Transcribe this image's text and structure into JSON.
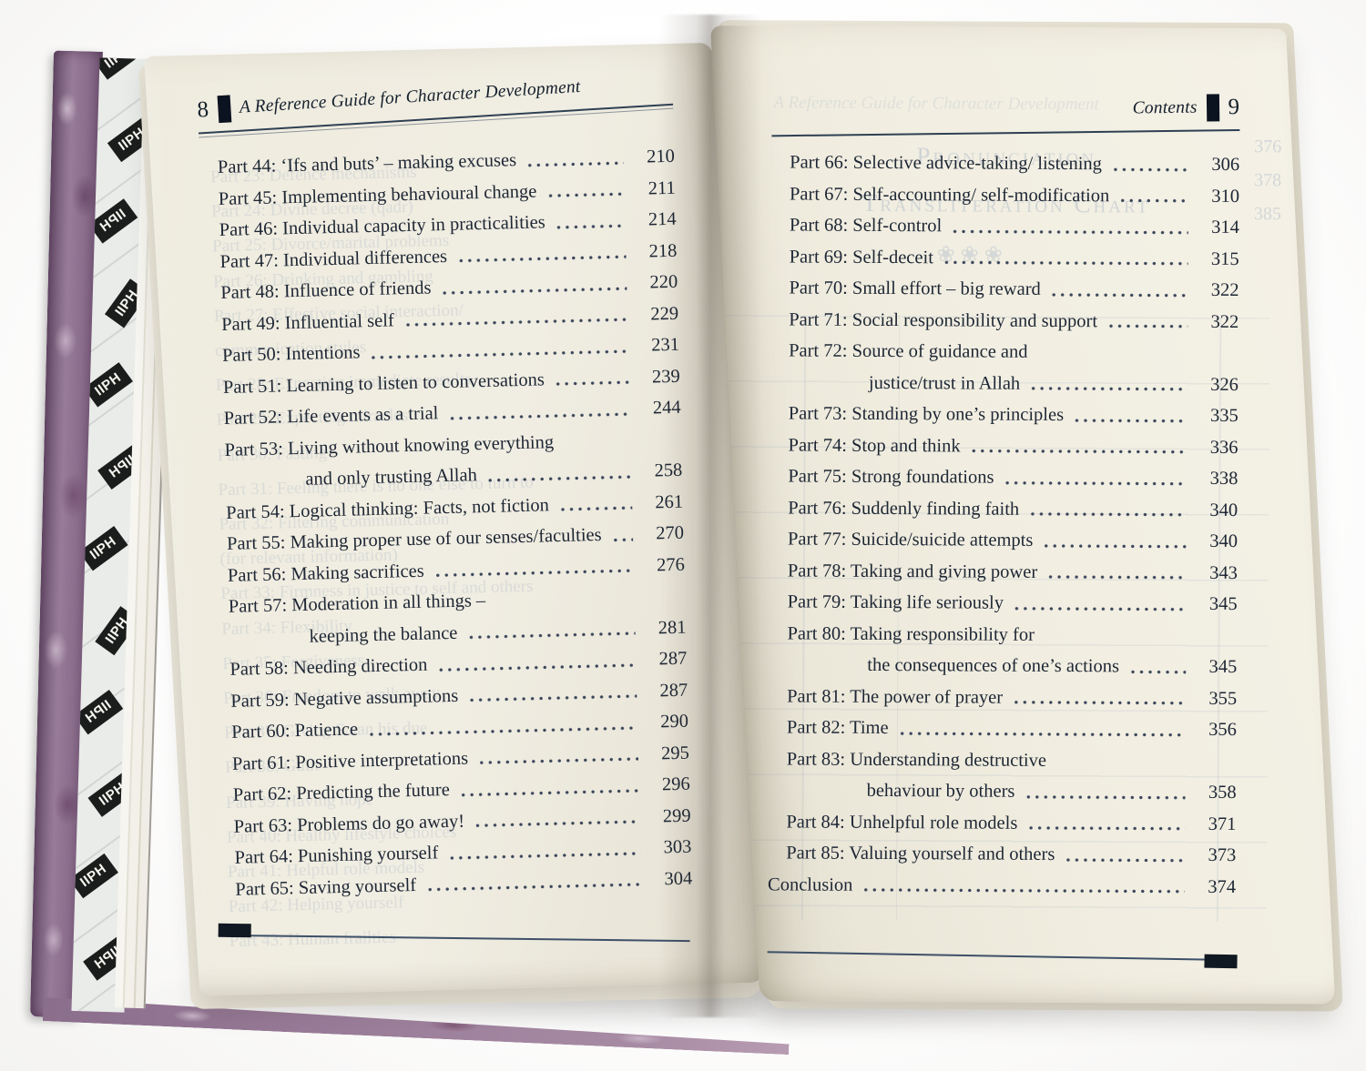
{
  "book": {
    "endpaper": {
      "pattern_text": "IIPH",
      "cover_color": "#8a6d8b"
    },
    "colors": {
      "ink": "#1d2634",
      "rule": "#2e4053",
      "paper": "#eeebe0",
      "ghost": "#41659c"
    },
    "left_page": {
      "page_number": "8",
      "running_head": "A Reference Guide for Character Development",
      "entries": [
        {
          "text": "Part 44: ‘Ifs and buts’ – making excuses",
          "page": "210"
        },
        {
          "text": "Part 45: Implementing behavioural change",
          "page": "211"
        },
        {
          "text": "Part 46: Individual capacity in practicalities",
          "page": "214"
        },
        {
          "text": "Part 47: Individual differences",
          "page": "218"
        },
        {
          "text": "Part 48: Influence of friends",
          "page": "220"
        },
        {
          "text": "Part 49: Influential self",
          "page": "229"
        },
        {
          "text": "Part 50: Intentions",
          "page": "231"
        },
        {
          "text": "Part 51: Learning to listen to conversations",
          "page": "239"
        },
        {
          "text": "Part 52: Life events as a trial",
          "page": "244"
        },
        {
          "text": "Part 53: Living without knowing everything",
          "cont": "and only trusting Allah",
          "page": "258"
        },
        {
          "text": "Part 54: Logical thinking: Facts, not fiction",
          "page": "261"
        },
        {
          "text": "Part 55: Making proper use of our senses/faculties",
          "page": "270"
        },
        {
          "text": "Part 56: Making sacrifices",
          "page": "276"
        },
        {
          "text": "Part 57: Moderation in all things –",
          "cont": "keeping the balance",
          "page": "281"
        },
        {
          "text": "Part 58: Needing direction",
          "page": "287"
        },
        {
          "text": "Part 59: Negative assumptions",
          "page": "287"
        },
        {
          "text": "Part 60: Patience",
          "page": "290"
        },
        {
          "text": "Part 61: Positive interpretations",
          "page": "295"
        },
        {
          "text": "Part 62: Predicting the future",
          "page": "296"
        },
        {
          "text": "Part 63: Problems do go away!",
          "page": "299"
        },
        {
          "text": "Part 64: Punishing yourself",
          "page": "303"
        },
        {
          "text": "Part 65: Saving yourself",
          "page": "304"
        }
      ],
      "ghost_lines": [
        "Part 23: Defence mechanisms",
        "Part 24: Divine decree (qadr)",
        "Part 25: Divorce/marital problems",
        "Part 26: Drinking and gambling",
        "Part 27: Effective social interaction/",
        "communication styles",
        "Part 28: Expecting immediate results",
        "Part 29: Expecting miracles",
        "Part 30: Fasting",
        "Part 31: Feeling there is no one else to turn to",
        "Part 32: Filtering communication",
        "(for relevant information)",
        "Part 33: Firmness in justice to self and others",
        "Part 34: Flexibility",
        "Part 35: Forgiveness",
        "Part 36: Freedom to walk away",
        "Part 37: Giving Satan his due",
        "Part 38: Guilt",
        "Part 39: Having hope",
        "Part 40: Healthy lifestyle choices",
        "Part 41: Helpful role models",
        "Part 42: Helping yourself",
        "Part 43: Human frailties"
      ]
    },
    "right_page": {
      "page_number": "9",
      "running_head": "Contents",
      "entries": [
        {
          "text": "Part 66: Selective advice-taking/ listening",
          "page": "306"
        },
        {
          "text": "Part 67: Self-accounting/ self-modification",
          "page": "310"
        },
        {
          "text": "Part 68: Self-control",
          "page": "314"
        },
        {
          "text": "Part 69: Self-deceit",
          "page": "315"
        },
        {
          "text": "Part 70: Small effort – big reward",
          "page": "322"
        },
        {
          "text": "Part 71: Social responsibility and support",
          "page": "322"
        },
        {
          "text": "Part 72: Source of guidance and",
          "cont": "justice/trust in Allah",
          "page": "326"
        },
        {
          "text": "Part 73: Standing by one’s principles",
          "page": "335"
        },
        {
          "text": "Part 74: Stop and think",
          "page": "336"
        },
        {
          "text": "Part 75: Strong foundations",
          "page": "338"
        },
        {
          "text": "Part 76: Suddenly finding faith",
          "page": "340"
        },
        {
          "text": "Part 77: Suicide/suicide attempts",
          "page": "340"
        },
        {
          "text": "Part 78: Taking and giving power",
          "page": "343"
        },
        {
          "text": "Part 79: Taking life seriously",
          "page": "345"
        },
        {
          "text": "Part 80: Taking responsibility for",
          "cont": "the consequences of one’s actions",
          "page": "345"
        },
        {
          "text": "Part 81: The power of prayer",
          "page": "355"
        },
        {
          "text": "Part 82: Time",
          "page": "356"
        },
        {
          "text": "Part 83: Understanding destructive",
          "cont": "behaviour by others",
          "page": "358"
        },
        {
          "text": "Part 84: Unhelpful role models",
          "page": "371"
        },
        {
          "text": "Part 85: Valuing yourself and others",
          "page": "373"
        },
        {
          "text": "Conclusion",
          "page": "374",
          "flush": true
        }
      ],
      "ghost_running_head": "A Reference Guide for Character Development",
      "ghost_heading": [
        "Pronunciation",
        "Transliteration Chart"
      ],
      "ghost_ornaments": "❀ ❀ ❀",
      "ghost_numbers": [
        "376",
        "378",
        "385"
      ]
    }
  }
}
